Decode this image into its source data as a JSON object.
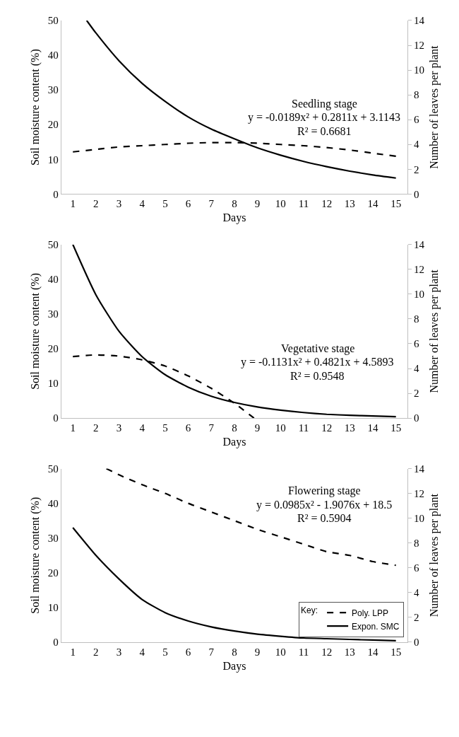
{
  "chart_data": [
    {
      "type": "line",
      "xlabel": "Days",
      "ylabel": "Soil moisture content (%)",
      "y2label": "Number of leaves per plant",
      "annotations": [
        "Seedling stage",
        "y = -0.0189x² + 0.2811x + 3.1143",
        "R² = 0.6681"
      ],
      "xlim": [
        0.5,
        15.5
      ],
      "xticks": [
        1,
        2,
        3,
        4,
        5,
        6,
        7,
        8,
        9,
        10,
        11,
        12,
        13,
        14,
        15
      ],
      "ylim": [
        0,
        50
      ],
      "yticks": [
        0,
        10,
        20,
        30,
        40,
        50
      ],
      "y2lim": [
        0,
        14
      ],
      "y2ticks": [
        0,
        2,
        4,
        6,
        8,
        10,
        12,
        14
      ],
      "marker": "none",
      "series": [
        {
          "color": "#000000",
          "axis": "y2",
          "line_style": "dashed",
          "x": [
            1,
            2,
            3,
            4,
            5,
            6,
            7,
            8,
            9,
            10,
            11,
            12,
            13,
            14,
            15
          ],
          "values": [
            3.4,
            3.6,
            3.8,
            3.9,
            4.0,
            4.1,
            4.15,
            4.15,
            4.1,
            4.0,
            3.9,
            3.75,
            3.55,
            3.3,
            3.05
          ]
        },
        {
          "color": "#000000",
          "line_style": "solid",
          "x": [
            1.6,
            2,
            3,
            4,
            5,
            6,
            7,
            8,
            9,
            10,
            11,
            12,
            13,
            14,
            15
          ],
          "values": [
            50,
            46.4,
            38.4,
            31.9,
            26.7,
            22.2,
            18.7,
            15.9,
            13.3,
            11.2,
            9.4,
            7.9,
            6.6,
            5.5,
            4.6
          ]
        }
      ]
    },
    {
      "type": "line",
      "xlabel": "Days",
      "ylabel": "Soil moisture content (%)",
      "y2label": "Number of leaves per plant",
      "annotations": [
        "Vegetative stage",
        "y = -0.1131x² + 0.4821x + 4.5893",
        "R² = 0.9548"
      ],
      "xlim": [
        0.5,
        15.5
      ],
      "xticks": [
        1,
        2,
        3,
        4,
        5,
        6,
        7,
        8,
        9,
        10,
        11,
        12,
        13,
        14,
        15
      ],
      "ylim": [
        0,
        50
      ],
      "yticks": [
        0,
        10,
        20,
        30,
        40,
        50
      ],
      "y2lim": [
        0,
        14
      ],
      "y2ticks": [
        0,
        2,
        4,
        6,
        8,
        10,
        12,
        14
      ],
      "marker": "none",
      "series": [
        {
          "color": "#000000",
          "axis": "y2",
          "line_style": "dashed",
          "x": [
            1,
            2,
            3,
            4,
            5,
            6,
            7,
            8,
            8.85
          ],
          "values": [
            4.96,
            5.1,
            5.0,
            4.7,
            4.2,
            3.4,
            2.4,
            1.2,
            0
          ]
        },
        {
          "color": "#000000",
          "line_style": "solid",
          "x": [
            1,
            2,
            3,
            4,
            5,
            6,
            7,
            8,
            9,
            10,
            11,
            12,
            13,
            14,
            15
          ],
          "values": [
            50,
            35.5,
            25,
            17.7,
            12.5,
            8.9,
            6.3,
            4.5,
            3.2,
            2.3,
            1.6,
            1.1,
            0.8,
            0.6,
            0.4
          ]
        }
      ]
    },
    {
      "type": "line",
      "xlabel": "Days",
      "ylabel": "Soil moisture content (%)",
      "y2label": "Number of leaves per plant",
      "annotations": [
        "Flowering stage",
        "y = 0.0985x² - 1.9076x + 18.5",
        "R² = 0.5904"
      ],
      "xlim": [
        0.5,
        15.5
      ],
      "xticks": [
        1,
        2,
        3,
        4,
        5,
        6,
        7,
        8,
        9,
        10,
        11,
        12,
        13,
        14,
        15
      ],
      "ylim": [
        0,
        50
      ],
      "yticks": [
        0,
        10,
        20,
        30,
        40,
        50
      ],
      "y2lim": [
        0,
        14
      ],
      "y2ticks": [
        0,
        2,
        4,
        6,
        8,
        10,
        12,
        14
      ],
      "marker": "none",
      "legend": "bottom right",
      "legend_title": "Key:",
      "series": [
        {
          "name": "Poly. LPP",
          "color": "#000000",
          "axis": "y2",
          "line_style": "dashed",
          "x": [
            2.45,
            3,
            4,
            5,
            6,
            7,
            8,
            9,
            10,
            11,
            12,
            13,
            14,
            15
          ],
          "values": [
            14,
            13.5,
            12.7,
            12.0,
            11.2,
            10.5,
            9.8,
            9.1,
            8.5,
            7.9,
            7.3,
            7.0,
            6.5,
            6.2
          ]
        },
        {
          "name": "Expon. SMC",
          "color": "#000000",
          "line_style": "solid",
          "x": [
            1,
            2,
            3,
            4,
            5,
            6,
            7,
            8,
            9,
            10,
            11,
            12,
            13,
            14,
            15
          ],
          "values": [
            33,
            25,
            18.2,
            12.3,
            8.5,
            6.1,
            4.4,
            3.2,
            2.3,
            1.7,
            1.2,
            1.0,
            0.8,
            0.6,
            0.4
          ]
        }
      ]
    }
  ]
}
